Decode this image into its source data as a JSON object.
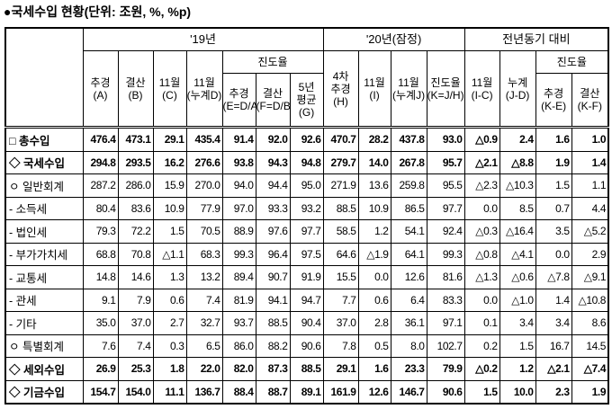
{
  "title": "●국세수입 현황(단위: 조원, %, %p)",
  "header": {
    "row1": [
      "'19년",
      "'20년(잠정)",
      "전년동기 대비"
    ],
    "row2": [
      "추경\n(A)",
      "결산\n(B)",
      "11월\n(C)",
      "11월\n(누계D)",
      "진도율",
      "4차\n추경\n(H)",
      "11월\n(I)",
      "11월\n(누계J)",
      "진도율\n(K=J/H)",
      "11월\n(I-C)",
      "누계\n(J-D)",
      "진도율"
    ],
    "row3": [
      "추경\n(E=D/A)",
      "결산\n(F=D/B)",
      "5년\n평균\n(G)",
      "추경\n(K-E)",
      "결산\n(K-F)"
    ]
  },
  "table": {
    "rows": [
      {
        "label": "□ 총수입",
        "bold": true,
        "cells": [
          "476.4",
          "473.1",
          "29.1",
          "435.4",
          "91.4",
          "92.0",
          "92.6",
          "470.7",
          "28.2",
          "437.8",
          "93.0",
          "△0.9",
          "2.4",
          "1.6",
          "1.0"
        ]
      },
      {
        "label": "◇ 국세수입",
        "bold": true,
        "cells": [
          "294.8",
          "293.5",
          "16.2",
          "276.6",
          "93.8",
          "94.3",
          "94.8",
          "279.7",
          "14.0",
          "267.8",
          "95.7",
          "△2.1",
          "△8.8",
          "1.9",
          "1.4"
        ]
      },
      {
        "label": "ㅇ 일반회계",
        "bold": false,
        "cells": [
          "287.2",
          "286.0",
          "15.9",
          "270.0",
          "94.0",
          "94.4",
          "95.0",
          "271.9",
          "13.6",
          "259.8",
          "95.5",
          "△2.3",
          "△10.3",
          "1.5",
          "1.1"
        ]
      },
      {
        "label": "- 소득세",
        "bold": false,
        "cells": [
          "80.4",
          "83.6",
          "10.9",
          "77.9",
          "97.0",
          "93.3",
          "93.2",
          "88.5",
          "10.9",
          "86.5",
          "97.7",
          "0.0",
          "8.5",
          "0.7",
          "4.4"
        ]
      },
      {
        "label": "- 법인세",
        "bold": false,
        "cells": [
          "79.3",
          "72.2",
          "1.5",
          "70.5",
          "88.9",
          "97.6",
          "97.7",
          "58.5",
          "1.2",
          "54.1",
          "92.4",
          "△0.3",
          "△16.4",
          "3.5",
          "△5.2"
        ]
      },
      {
        "label": "- 부가가치세",
        "bold": false,
        "cells": [
          "68.8",
          "70.8",
          "△1.1",
          "68.3",
          "99.3",
          "96.4",
          "97.5",
          "64.6",
          "△1.9",
          "64.1",
          "99.3",
          "△0.8",
          "△4.1",
          "0.0",
          "2.9"
        ]
      },
      {
        "label": "- 교통세",
        "bold": false,
        "cells": [
          "14.8",
          "14.6",
          "1.3",
          "13.2",
          "89.4",
          "90.7",
          "91.9",
          "15.5",
          "0.0",
          "12.6",
          "81.6",
          "△1.3",
          "△0.6",
          "△7.8",
          "△9.1"
        ]
      },
      {
        "label": "- 관세",
        "bold": false,
        "cells": [
          "9.1",
          "7.9",
          "0.6",
          "7.4",
          "81.9",
          "94.1",
          "94.7",
          "7.7",
          "0.6",
          "6.4",
          "83.3",
          "0.0",
          "△1.0",
          "1.4",
          "△10.8"
        ]
      },
      {
        "label": "- 기타",
        "bold": false,
        "cells": [
          "35.0",
          "37.0",
          "2.7",
          "32.7",
          "93.7",
          "88.5",
          "90.4",
          "37.0",
          "2.8",
          "36.1",
          "97.1",
          "0.1",
          "3.4",
          "3.4",
          "8.6"
        ]
      },
      {
        "label": "ㅇ 특별회계",
        "bold": false,
        "cells": [
          "7.6",
          "7.4",
          "0.3",
          "6.5",
          "86.0",
          "88.2",
          "90.6",
          "7.8",
          "0.5",
          "8.0",
          "102.7",
          "0.2",
          "1.5",
          "16.7",
          "14.5"
        ]
      },
      {
        "label": "◇ 세외수입",
        "bold": true,
        "cells": [
          "26.9",
          "25.3",
          "1.8",
          "22.0",
          "82.0",
          "87.3",
          "88.5",
          "29.1",
          "1.6",
          "23.3",
          "79.9",
          "△0.2",
          "1.2",
          "△2.1",
          "△7.4"
        ]
      },
      {
        "label": "◇ 기금수입",
        "bold": true,
        "cells": [
          "154.7",
          "154.0",
          "11.1",
          "136.7",
          "88.4",
          "88.7",
          "89.1",
          "161.9",
          "12.6",
          "146.7",
          "90.6",
          "1.5",
          "10.0",
          "2.3",
          "1.9"
        ]
      }
    ]
  }
}
